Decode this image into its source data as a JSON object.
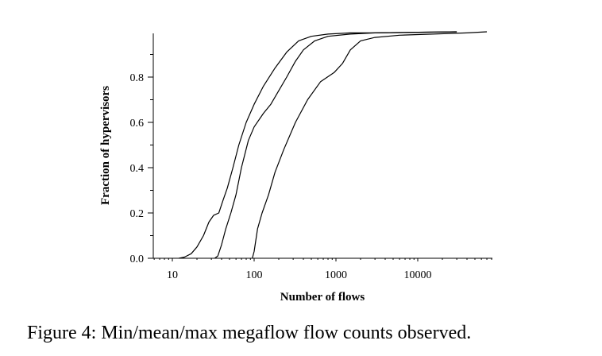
{
  "chart_data": {
    "type": "line",
    "title": "",
    "xlabel": "Number of flows",
    "ylabel": "Fraction of hypervisors",
    "xscale": "log",
    "xlim": [
      5,
      80000
    ],
    "ylim": [
      0,
      1
    ],
    "x_ticks": [
      10,
      100,
      1000,
      10000
    ],
    "x_tick_labels": [
      "10",
      "100",
      "1000",
      "10000"
    ],
    "y_ticks": [
      0.0,
      0.2,
      0.4,
      0.6,
      0.8
    ],
    "y_tick_labels": [
      "0.0",
      "0.2",
      "0.4",
      "0.6",
      "0.8"
    ],
    "legend": "none",
    "series": [
      {
        "name": "min",
        "points": [
          [
            12,
            0
          ],
          [
            14,
            0.005
          ],
          [
            17,
            0.02
          ],
          [
            20,
            0.05
          ],
          [
            24,
            0.1
          ],
          [
            28,
            0.16
          ],
          [
            32,
            0.19
          ],
          [
            37,
            0.2
          ],
          [
            42,
            0.26
          ],
          [
            47,
            0.31
          ],
          [
            55,
            0.4
          ],
          [
            65,
            0.5
          ],
          [
            80,
            0.6
          ],
          [
            100,
            0.68
          ],
          [
            130,
            0.76
          ],
          [
            180,
            0.84
          ],
          [
            250,
            0.91
          ],
          [
            350,
            0.96
          ],
          [
            500,
            0.98
          ],
          [
            800,
            0.99
          ],
          [
            1500,
            0.995
          ],
          [
            3000,
            0.995
          ],
          [
            30000,
            1.0
          ]
        ]
      },
      {
        "name": "mean",
        "points": [
          [
            33,
            0
          ],
          [
            36,
            0.01
          ],
          [
            40,
            0.06
          ],
          [
            45,
            0.13
          ],
          [
            52,
            0.2
          ],
          [
            60,
            0.28
          ],
          [
            70,
            0.4
          ],
          [
            85,
            0.52
          ],
          [
            100,
            0.58
          ],
          [
            130,
            0.64
          ],
          [
            160,
            0.68
          ],
          [
            200,
            0.74
          ],
          [
            250,
            0.8
          ],
          [
            320,
            0.87
          ],
          [
            400,
            0.92
          ],
          [
            550,
            0.96
          ],
          [
            800,
            0.98
          ],
          [
            1500,
            0.99
          ],
          [
            3000,
            0.995
          ],
          [
            30000,
            1.0
          ]
        ]
      },
      {
        "name": "max",
        "points": [
          [
            95,
            0
          ],
          [
            100,
            0.03
          ],
          [
            110,
            0.13
          ],
          [
            125,
            0.2
          ],
          [
            150,
            0.28
          ],
          [
            180,
            0.38
          ],
          [
            230,
            0.48
          ],
          [
            320,
            0.6
          ],
          [
            450,
            0.7
          ],
          [
            650,
            0.78
          ],
          [
            950,
            0.82
          ],
          [
            1200,
            0.86
          ],
          [
            1500,
            0.92
          ],
          [
            2000,
            0.96
          ],
          [
            3000,
            0.975
          ],
          [
            6000,
            0.985
          ],
          [
            15000,
            0.99
          ],
          [
            40000,
            0.995
          ],
          [
            70000,
            1.0
          ]
        ]
      }
    ]
  },
  "caption": "Figure 4: Min/mean/max megaflow flow counts observed."
}
